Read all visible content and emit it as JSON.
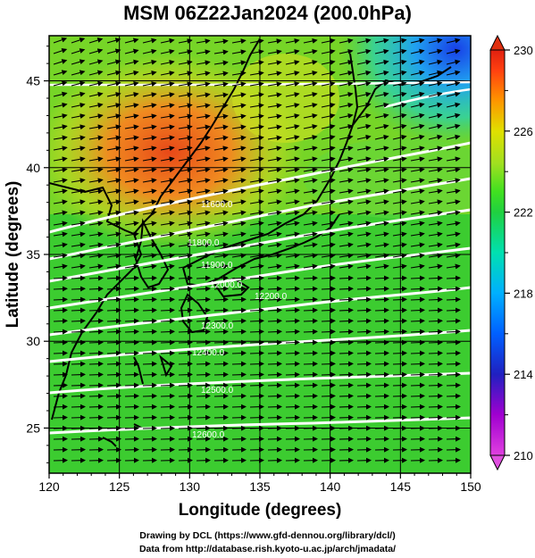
{
  "title": "MSM 06Z22Jan2024 (200.0hPa)",
  "x_axis": {
    "label": "Longitude (degrees)",
    "range": [
      120,
      150
    ],
    "ticks": [
      "120",
      "125",
      "130",
      "135",
      "140",
      "145",
      "150"
    ],
    "tick_values": [
      120,
      125,
      130,
      135,
      140,
      145,
      150
    ]
  },
  "y_axis": {
    "label": "Latitude  (degrees)",
    "range": [
      22.4,
      47.6
    ],
    "ticks": [
      "25",
      "30",
      "35",
      "40",
      "45"
    ],
    "tick_values": [
      25,
      30,
      35,
      40,
      45
    ]
  },
  "colorbar": {
    "min": 210,
    "max": 230,
    "tick_labels": [
      "210",
      "214",
      "218",
      "222",
      "226",
      "230"
    ],
    "tick_values": [
      210,
      214,
      218,
      222,
      226,
      230
    ],
    "colors": [
      "#e040e0",
      "#a000d0",
      "#2020c0",
      "#0060ff",
      "#00b0ff",
      "#00e0c0",
      "#20d040",
      "#40e020",
      "#a0e020",
      "#e0e000",
      "#ff9000",
      "#ff4010",
      "#e02010"
    ]
  },
  "contour_labels": [
    "11600.0",
    "11800.0",
    "11900.0",
    "12000.0",
    "12200.0",
    "12300.0",
    "12400.0",
    "12500.0",
    "12600.0"
  ],
  "credits": {
    "line1": "Drawing by DCL (https://www.gfd-dennou.org/library/dcl/)",
    "line2": "Data from http://database.rish.kyoto-u.ac.jp/arch/jmadata/"
  },
  "field_colors": {
    "warm": "#e85018",
    "orange": "#f09020",
    "yellow": "#d8e020",
    "green": "#38d030",
    "cyan": "#20c8d8",
    "blue": "#2050e8",
    "contour": "#ffffff",
    "coast": "#000000"
  }
}
